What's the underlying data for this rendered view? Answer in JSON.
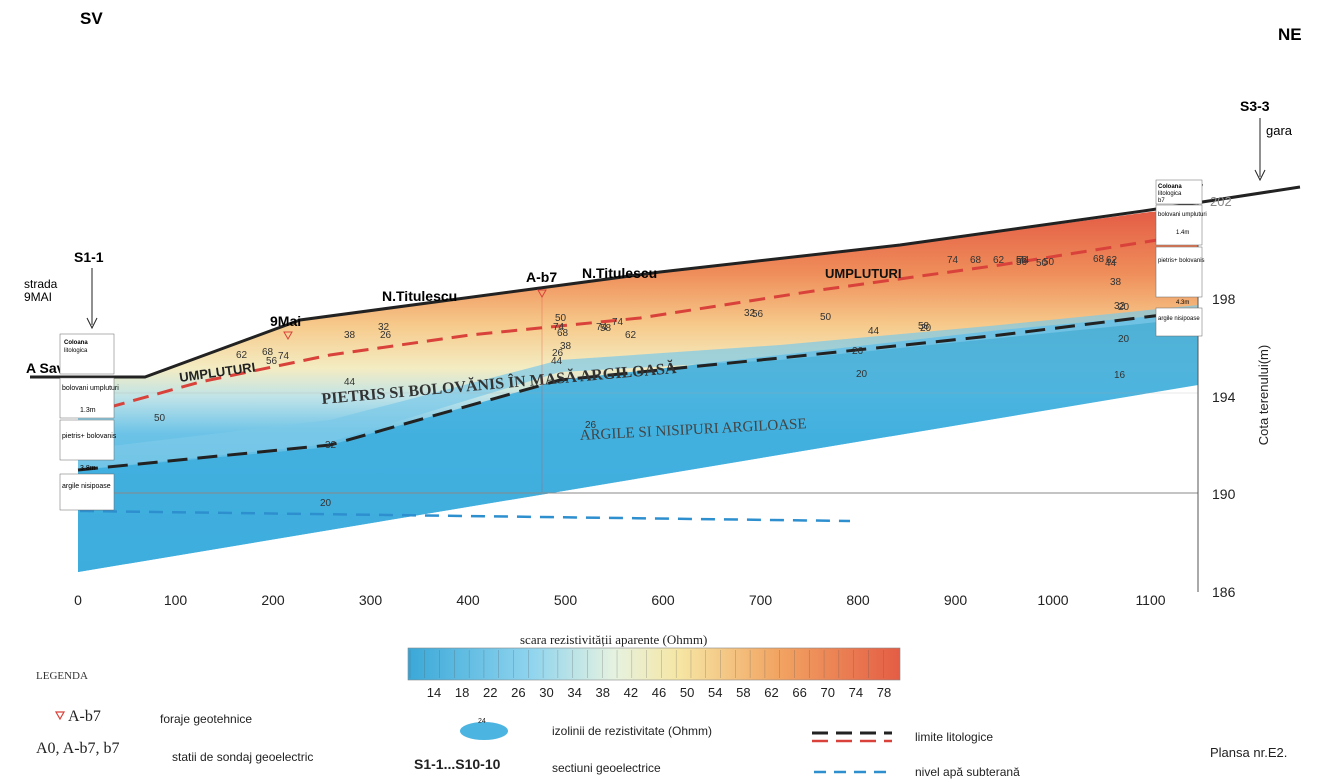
{
  "orientation": {
    "left": "SV",
    "right": "NE"
  },
  "x_axis": {
    "ticks": [
      "0",
      "100",
      "200",
      "300",
      "400",
      "500",
      "600",
      "700",
      "800",
      "900",
      "1000",
      "1100"
    ]
  },
  "y_axis": {
    "label": "Cota terenului(m)",
    "ticks": [
      "202",
      "198",
      "194",
      "190",
      "186"
    ]
  },
  "locations": {
    "s1": "S1-1",
    "strada_line1": "strada",
    "strada_line2": "9MAI",
    "savinesti": "A Savinesti",
    "mai9": "9Mai",
    "titulescu1": "N.Titulescu",
    "ab7": "A-b7",
    "titulescu2": "N.Titulescu",
    "s3": "S3-3",
    "gara": "gara",
    "b7": "b7"
  },
  "columns": {
    "left": {
      "head_1": "Coloana",
      "head_2": "litologica",
      "layers": [
        "bolovani umpluturi",
        "pietris+ bolovanis",
        "argile nisipoase"
      ],
      "depths": [
        "1.3m",
        "3.8m"
      ]
    },
    "right": {
      "head_1": "Coloana",
      "head_2": "litologica",
      "head_3": "b7",
      "layers": [
        "bolovani umpluturi",
        "pietris+ bolovanis",
        "argile nisipoase"
      ],
      "depths": [
        "1.4m",
        "4.3m"
      ]
    }
  },
  "units": {
    "fill_left": "UMPLUTURI",
    "fill_right": "UMPLUTURI",
    "gravel": "PIETRIS SI BOLOVĂNIS ÎN MASĂ ARGILOASĂ",
    "clay": "ARGILE SI NISIPURI ARGILOASE"
  },
  "isolines": [
    "74",
    "62",
    "68",
    "56",
    "44",
    "50",
    "38",
    "32",
    "26",
    "50",
    "74",
    "74",
    "74",
    "58",
    "68",
    "62",
    "38",
    "44",
    "32",
    "26",
    "74",
    "68",
    "62",
    "56",
    "50",
    "74",
    "68",
    "62",
    "56",
    "50",
    "44",
    "38",
    "32",
    "26",
    "20",
    "20",
    "16",
    "20",
    "26",
    "20",
    "32",
    "44",
    "58",
    "50",
    "56",
    "20"
  ],
  "scale": {
    "title": "scara rezistivității aparente (Ohmm)",
    "labels": [
      "14",
      "18",
      "22",
      "26",
      "30",
      "34",
      "38",
      "42",
      "46",
      "50",
      "54",
      "58",
      "62",
      "66",
      "70",
      "74",
      "78"
    ],
    "colors": [
      "#3aa8d8",
      "#4cb4e0",
      "#5ebfe6",
      "#74c9ea",
      "#8fd4ee",
      "#aee0f0",
      "#cdeaef",
      "#e6f2e0",
      "#f3f2c8",
      "#f7e7a6",
      "#f6d487",
      "#f4bd72",
      "#f2a563",
      "#ef8f58",
      "#ec7a50",
      "#e86a49",
      "#e45d45"
    ]
  },
  "legend": {
    "title": "LEGENDA",
    "item1_sym": "A-b7",
    "item1_txt": "foraje geotehnice",
    "item2_sym": "A0, A-b7, b7",
    "item2_txt": "statii de sondaj geoelectric",
    "item3_ellipse_val": "24",
    "item3_txt": "izolinii de rezistivitate (Ohmm)",
    "item4_sym": "S1-1...S10-10",
    "item4_txt": "sectiuni geoelectrice",
    "item5_txt": "limite litologice",
    "item6_txt": "nivel apă subterană"
  },
  "plate": "Plansa nr.E2.",
  "colors": {
    "red_fill": "#e8704e",
    "orange": "#f2a765",
    "yellow": "#f5e7a6",
    "cyan": "#3fb0de",
    "red_dash": "#d9423a",
    "black_dash": "#222222",
    "water_dash": "#2e8fcf"
  }
}
